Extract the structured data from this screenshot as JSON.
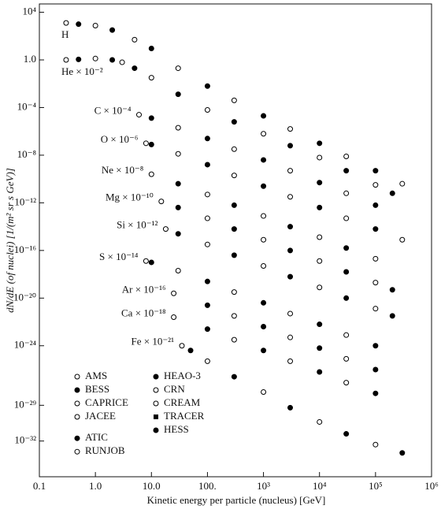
{
  "chart_data": {
    "type": "scatter",
    "x_label": "Kinetic energy per particle (nucleus)   [GeV]",
    "y_label": "dN/dE (of nuclei)   [1/(m² sr s GeV)]",
    "x_scale": "log",
    "y_scale": "log",
    "xlim": [
      0.1,
      1000000
    ],
    "ylim": [
      1e-35,
      50000
    ],
    "xticks": [
      0.1,
      {
        "value": 1,
        "label": "1.0"
      },
      {
        "value": 10,
        "label": "10.0"
      },
      {
        "value": 100,
        "label": "100."
      },
      {
        "value": 1000,
        "label": "10³"
      },
      {
        "value": 10000,
        "label": "10⁴"
      },
      {
        "value": 100000,
        "label": "10⁵"
      },
      {
        "value": 1000000,
        "label": "10⁶"
      }
    ],
    "yticks": [
      {
        "value": 10000,
        "label": "10⁴"
      },
      {
        "value": 1,
        "label": "1.0"
      },
      {
        "value": 0.0001,
        "label": "10⁻⁴"
      },
      {
        "value": 1e-08,
        "label": "10⁻⁸"
      },
      {
        "value": 1e-12,
        "label": "10⁻¹²"
      },
      {
        "value": 1e-16,
        "label": "10⁻¹⁶"
      },
      {
        "value": 1e-20,
        "label": "10⁻²⁰"
      },
      {
        "value": 1e-24,
        "label": "10⁻²⁴"
      },
      {
        "value": 1e-29,
        "label": "10⁻²⁹"
      },
      {
        "value": 1e-32,
        "label": "10⁻³²"
      }
    ],
    "color": "#000000",
    "series": [
      {
        "name": "H",
        "x": [
          0.3,
          0.5,
          1,
          2,
          5,
          10,
          30,
          100,
          300,
          1000,
          3000,
          10000,
          30000,
          100000,
          300000
        ],
        "values": [
          1260.0,
          1000.0,
          760.0,
          320.0,
          50,
          9.1,
          0.2,
          0.0063,
          0.0004,
          2e-05,
          1.6e-06,
          1e-07,
          7.9e-09,
          5e-10,
          4e-11
        ]
      },
      {
        "name": "He × 10⁻²",
        "x": [
          0.3,
          0.5,
          1,
          2,
          3,
          5,
          10,
          30,
          100,
          300,
          1000,
          3000,
          10000,
          30000,
          100000,
          200000
        ],
        "values": [
          1,
          1.1,
          1.3,
          1,
          0.63,
          0.2,
          0.032,
          0.0013,
          6.3e-05,
          6.3e-06,
          6.3e-07,
          6.3e-08,
          6.3e-09,
          5e-10,
          3.2e-11,
          6.3e-12
        ]
      },
      {
        "name": "C × 10⁻⁴",
        "x": [
          6,
          10,
          30,
          100,
          300,
          1000,
          3000,
          10000,
          30000,
          100000
        ],
        "values": [
          2.5e-05,
          1.3e-05,
          2e-06,
          2.5e-07,
          3.2e-08,
          4e-09,
          5e-10,
          5e-11,
          6.3e-12,
          6.3e-13
        ]
      },
      {
        "name": "O × 10⁻⁶",
        "x": [
          8,
          10,
          30,
          100,
          300,
          1000,
          3000,
          10000,
          30000,
          100000,
          300000
        ],
        "values": [
          1e-07,
          7.9e-08,
          1.3e-08,
          1.6e-09,
          2e-10,
          2.5e-11,
          3.2e-12,
          4e-13,
          5e-14,
          6.3e-15,
          7.9e-16
        ]
      },
      {
        "name": "Ne × 10⁻⁸",
        "x": [
          10,
          30,
          100,
          300,
          1000,
          3000,
          10000,
          30000,
          100000
        ],
        "values": [
          2.5e-10,
          4e-11,
          5e-12,
          6.3e-13,
          7.9e-14,
          1e-14,
          1.3e-15,
          1.6e-16,
          2e-17
        ]
      },
      {
        "name": "Mg × 10⁻¹⁰",
        "x": [
          15,
          30,
          100,
          300,
          1000,
          3000,
          10000,
          30000,
          100000,
          200000
        ],
        "values": [
          1.3e-12,
          4e-13,
          5e-14,
          6.3e-15,
          7.9e-16,
          1e-16,
          1.3e-17,
          1.6e-18,
          2e-19,
          5e-20
        ]
      },
      {
        "name": "Si × 10⁻¹²",
        "x": [
          18,
          30,
          100,
          300,
          1000,
          3000,
          10000,
          30000,
          100000,
          200000
        ],
        "values": [
          6.3e-15,
          2.5e-15,
          3.2e-16,
          4e-17,
          5e-18,
          6.3e-19,
          7.9e-20,
          1e-20,
          1.3e-21,
          3.2e-22
        ]
      },
      {
        "name": "S × 10⁻¹⁴",
        "x": [
          8,
          10,
          30,
          100,
          300,
          1000,
          3000,
          10000,
          30000,
          100000
        ],
        "values": [
          1.3e-17,
          1e-17,
          2e-18,
          2.5e-19,
          3.2e-20,
          4e-21,
          5e-22,
          6.3e-23,
          7.9e-24,
          1e-24
        ]
      },
      {
        "name": "Ar × 10⁻¹⁶",
        "x": [
          25,
          100,
          300,
          1000,
          3000,
          10000,
          30000,
          100000
        ],
        "values": [
          2.5e-20,
          2.5e-21,
          3.2e-22,
          4e-23,
          5e-24,
          6.3e-25,
          7.9e-26,
          1e-26
        ]
      },
      {
        "name": "Ca × 10⁻¹⁸",
        "x": [
          25,
          100,
          300,
          1000,
          3000,
          10000,
          30000,
          100000
        ],
        "values": [
          2.5e-22,
          2.5e-23,
          3.2e-24,
          4e-25,
          5e-26,
          6.3e-27,
          7.9e-28,
          1e-28
        ]
      },
      {
        "name": "Fe × 10⁻²¹",
        "x": [
          35,
          50,
          100,
          300,
          1000,
          3000,
          10000,
          30000,
          100000,
          300000
        ],
        "values": [
          1e-24,
          4e-25,
          5e-26,
          2.5e-27,
          1.3e-28,
          6.3e-30,
          4e-31,
          4e-32,
          5e-33,
          1e-33
        ]
      }
    ],
    "legend": [
      {
        "name": "AMS",
        "marker": "open"
      },
      {
        "name": "BESS",
        "marker": "filled"
      },
      {
        "name": "CAPRICE",
        "marker": "open"
      },
      {
        "name": "JACEE",
        "marker": "open"
      },
      {
        "name": "ATIC",
        "marker": "filled"
      },
      {
        "name": "RUNJOB",
        "marker": "open"
      },
      {
        "name": "HEAO-3",
        "marker": "filled"
      },
      {
        "name": "CRN",
        "marker": "open"
      },
      {
        "name": "CREAM",
        "marker": "open"
      },
      {
        "name": "TRACER",
        "marker": "square"
      },
      {
        "name": "HESS",
        "marker": "filled"
      }
    ]
  }
}
